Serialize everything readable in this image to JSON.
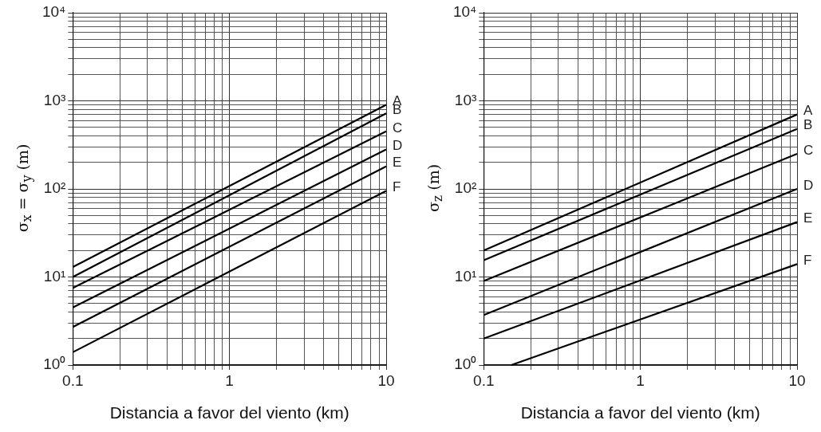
{
  "chart_data": [
    {
      "type": "line",
      "xlabel": "Distancia a favor del viento (km)",
      "ylabel": "σ$_{x}$ = σ$_{y}$ (m)",
      "xlim": [
        0.1,
        10
      ],
      "ylim": [
        1,
        10000
      ],
      "log": "xy",
      "grid": true,
      "marker": "none",
      "line_style": "solid",
      "legend": false,
      "xticks": [
        0.1,
        1,
        10
      ],
      "yticks": [
        {
          "value": 1,
          "label": "10⁰"
        },
        {
          "value": 10,
          "label": "10¹"
        },
        {
          "value": 100,
          "label": "10²"
        },
        {
          "value": 1000,
          "label": "10³"
        },
        {
          "value": 10000,
          "label": "10⁴"
        }
      ],
      "series": [
        {
          "name": "A",
          "color": "#000000",
          "x": [
            0.1,
            10
          ],
          "values": [
            13,
            900
          ]
        },
        {
          "name": "B",
          "color": "#000000",
          "x": [
            0.1,
            10
          ],
          "values": [
            10,
            720
          ]
        },
        {
          "name": "C",
          "color": "#000000",
          "x": [
            0.1,
            10
          ],
          "values": [
            7.5,
            450
          ]
        },
        {
          "name": "D",
          "color": "#000000",
          "x": [
            0.1,
            10
          ],
          "values": [
            4.5,
            280
          ]
        },
        {
          "name": "E",
          "color": "#000000",
          "x": [
            0.1,
            10
          ],
          "values": [
            2.7,
            180
          ]
        },
        {
          "name": "F",
          "color": "#000000",
          "x": [
            0.1,
            10
          ],
          "values": [
            1.4,
            95
          ]
        }
      ]
    },
    {
      "type": "line",
      "xlabel": "Distancia a favor del viento (km)",
      "ylabel": "σ$_{z}$ (m)",
      "xlim": [
        0.1,
        10
      ],
      "ylim": [
        1,
        10000
      ],
      "log": "xy",
      "grid": true,
      "marker": "none",
      "line_style": "solid",
      "legend": false,
      "xticks": [
        0.1,
        1,
        10
      ],
      "yticks": [
        {
          "value": 1,
          "label": "10⁰"
        },
        {
          "value": 10,
          "label": "10¹"
        },
        {
          "value": 100,
          "label": "10²"
        },
        {
          "value": 1000,
          "label": "10³"
        },
        {
          "value": 10000,
          "label": "10⁴"
        }
      ],
      "series": [
        {
          "name": "A",
          "color": "#000000",
          "x": [
            0.1,
            10
          ],
          "values": [
            20,
            700
          ]
        },
        {
          "name": "B",
          "color": "#000000",
          "x": [
            0.1,
            10
          ],
          "values": [
            15.5,
            480
          ]
        },
        {
          "name": "C",
          "color": "#000000",
          "x": [
            0.1,
            10
          ],
          "values": [
            9,
            250
          ]
        },
        {
          "name": "D",
          "color": "#000000",
          "x": [
            0.1,
            10
          ],
          "values": [
            3.7,
            100
          ]
        },
        {
          "name": "E",
          "color": "#000000",
          "x": [
            0.1,
            10
          ],
          "values": [
            2,
            42
          ]
        },
        {
          "name": "F",
          "color": "#000000",
          "x": [
            0.15,
            10
          ],
          "values": [
            1,
            14
          ]
        }
      ]
    }
  ]
}
